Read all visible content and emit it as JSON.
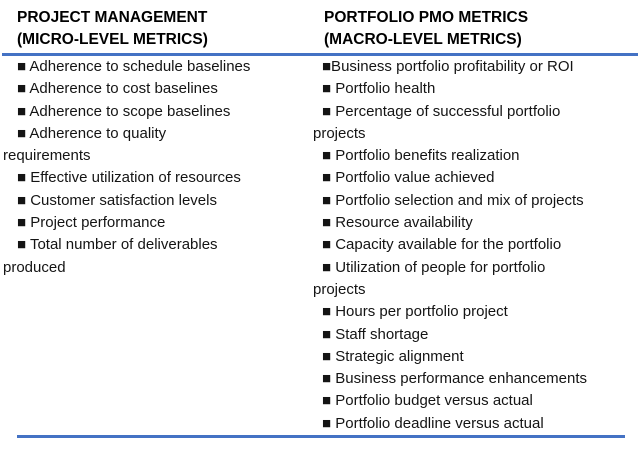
{
  "accent_color": "#4472C4",
  "table": {
    "columns": [
      {
        "header": "PROJECT MANAGEMENT\n(MICRO-LEVEL METRICS)",
        "items": [
          "■ Adherence to schedule baselines",
          "■ Adherence to cost baselines",
          "■ Adherence to scope baselines",
          "■ Adherence to quality\nrequirements",
          "■ Effective utilization of resources",
          "■ Customer satisfaction levels",
          "■ Project performance",
          "■ Total number of deliverables\nproduced"
        ]
      },
      {
        "header": "PORTFOLIO PMO METRICS\n(MACRO-LEVEL METRICS)",
        "items": [
          "■Business portfolio profitability or ROI",
          "■ Portfolio health",
          "■ Percentage of successful portfolio\nprojects",
          "■ Portfolio benefits realization",
          "■ Portfolio value achieved",
          "■ Portfolio selection and mix of projects",
          "■ Resource availability",
          "■ Capacity available for the portfolio",
          "■ Utilization of people for portfolio\nprojects",
          "■ Hours per portfolio project",
          "■ Staff shortage",
          "■ Strategic alignment",
          "■ Business performance enhancements",
          "■ Portfolio budget versus actual",
          "■ Portfolio deadline versus actual"
        ]
      }
    ]
  }
}
